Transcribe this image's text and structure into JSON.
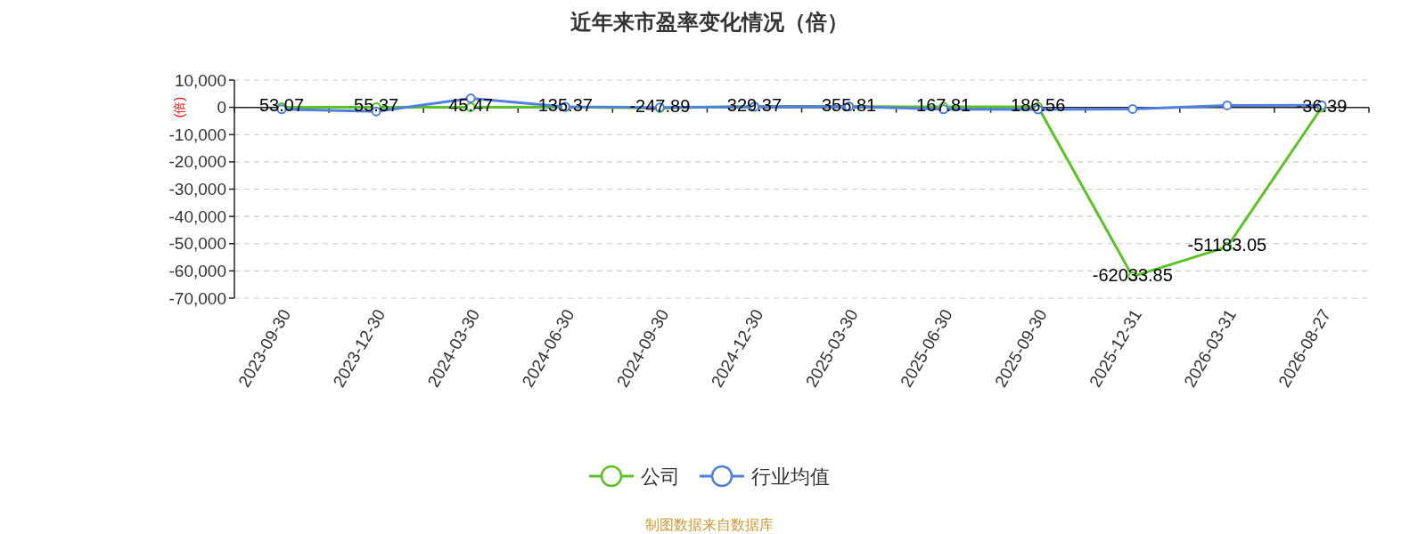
{
  "chart_data": {
    "type": "line",
    "title": "近年来市盈率变化情况（倍）",
    "ylabel": "(倍)",
    "annotations": [
      "制图数据来自数据库"
    ],
    "categories": [
      "2023-09-30",
      "2023-12-30",
      "2024-03-30",
      "2024-06-30",
      "2024-09-30",
      "2024-12-30",
      "2025-03-30",
      "2025-06-30",
      "2025-09-30",
      "2025-12-31",
      "2026-03-31",
      "2026-08-27"
    ],
    "series": [
      {
        "name": "公司",
        "color": "#58c322",
        "values": [
          53.07,
          55.37,
          45.47,
          135.37,
          -247.89,
          329.37,
          355.81,
          167.81,
          186.56,
          -62033.85,
          -51183.05,
          -36.39
        ],
        "value_labels": [
          "53.07",
          "55.37",
          "45.47",
          "135.37",
          "-247.89",
          "329.37",
          "355.81",
          "167.81",
          "186.56",
          "-62033.85",
          "-51183.05",
          "-36.39"
        ]
      },
      {
        "name": "行业均值",
        "color": "#4f7fe0",
        "values": [
          -700,
          -1500,
          3300,
          200,
          0,
          200,
          300,
          -700,
          -800,
          -600,
          700,
          800
        ]
      }
    ],
    "ylim": [
      -70000,
      10000
    ],
    "yticks": [
      {
        "value": 10000,
        "label": "10,000"
      },
      0,
      {
        "value": -10000,
        "label": "-10,000"
      },
      {
        "value": -20000,
        "label": "-20,000"
      },
      {
        "value": -30000,
        "label": "-30,000"
      },
      {
        "value": -40000,
        "label": "-40,000"
      },
      {
        "value": -50000,
        "label": "-50,000"
      },
      {
        "value": -60000,
        "label": "-60,000"
      },
      {
        "value": -70000,
        "label": "-70,000"
      }
    ],
    "grid": "y",
    "legend": "bottom",
    "marker": "circle"
  }
}
